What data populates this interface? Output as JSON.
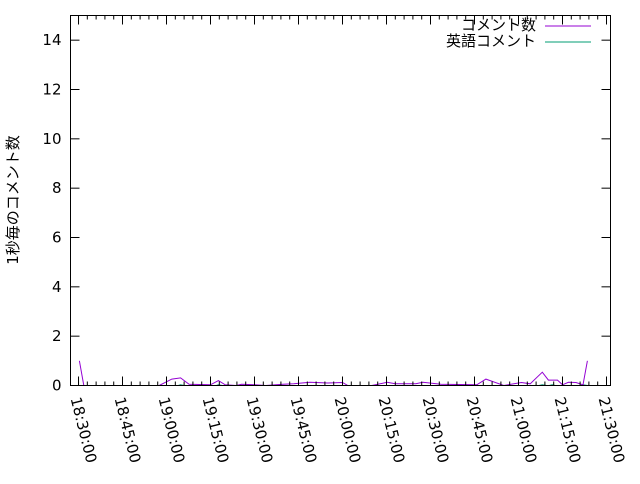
{
  "chart_data": {
    "type": "line",
    "title": "",
    "xlabel": "",
    "ylabel": "1秒毎のコメント数",
    "xlim": [
      "18:27:16",
      "21:31:22"
    ],
    "ylim": [
      0,
      15
    ],
    "x_ticks": [
      "18:30:00",
      "18:45:00",
      "19:00:00",
      "19:15:00",
      "19:30:00",
      "19:45:00",
      "20:00:00",
      "20:15:00",
      "20:30:00",
      "20:45:00",
      "21:00:00",
      "21:15:00",
      "21:30:00"
    ],
    "y_ticks": [
      0,
      2,
      4,
      6,
      8,
      10,
      12,
      14
    ],
    "grid": false,
    "legend_placement": "top-right",
    "series": [
      {
        "name": "コメント数",
        "color": "#9400d3",
        "points": [
          [
            "18:30:18",
            1.0
          ],
          [
            "18:31:48",
            0
          ],
          [
            "18:57:30",
            0
          ],
          [
            "19:01:48",
            0.26
          ],
          [
            "19:04:48",
            0.31
          ],
          [
            "19:07:42",
            0.05
          ],
          [
            "19:15:00",
            0.03
          ],
          [
            "19:17:42",
            0.2
          ],
          [
            "19:20:00",
            0.03
          ],
          [
            "19:23:48",
            0
          ],
          [
            "19:25:36",
            0.05
          ],
          [
            "19:30:00",
            0.03
          ],
          [
            "19:33:48",
            0
          ],
          [
            "19:39:42",
            0.05
          ],
          [
            "19:43:24",
            0.07
          ],
          [
            "19:48:54",
            0.13
          ],
          [
            "19:55:00",
            0.1
          ],
          [
            "20:00:00",
            0.12
          ],
          [
            "20:01:48",
            0
          ],
          [
            "20:10:00",
            0
          ],
          [
            "20:15:12",
            0.13
          ],
          [
            "20:18:00",
            0.07
          ],
          [
            "20:25:00",
            0.07
          ],
          [
            "20:27:24",
            0.13
          ],
          [
            "20:33:30",
            0.05
          ],
          [
            "20:45:48",
            0.03
          ],
          [
            "20:48:54",
            0.26
          ],
          [
            "20:55:00",
            0
          ],
          [
            "21:01:00",
            0.12
          ],
          [
            "21:04:00",
            0.07
          ],
          [
            "21:08:06",
            0.54
          ],
          [
            "21:10:12",
            0.22
          ],
          [
            "21:13:18",
            0.22
          ],
          [
            "21:15:00",
            0.03
          ],
          [
            "21:17:00",
            0.13
          ],
          [
            "21:19:36",
            0.12
          ],
          [
            "21:22:00",
            0.03
          ],
          [
            "21:23:30",
            1.0
          ]
        ]
      },
      {
        "name": "英語コメント",
        "color": "#009e73",
        "points": [
          [
            "18:30:18",
            0
          ],
          [
            "19:04:00",
            0
          ],
          [
            "19:04:48",
            0.03
          ],
          [
            "19:06:00",
            0
          ],
          [
            "19:17:00",
            0
          ],
          [
            "19:17:42",
            0.03
          ],
          [
            "19:19:00",
            0
          ],
          [
            "21:07:00",
            0
          ],
          [
            "21:08:06",
            0.03
          ],
          [
            "21:09:30",
            0
          ],
          [
            "21:10:30",
            0
          ],
          [
            "21:11:30",
            0.03
          ],
          [
            "21:12:30",
            0
          ],
          [
            "21:21:30",
            0
          ],
          [
            "21:22:00",
            0.03
          ],
          [
            "21:23:30",
            0
          ]
        ]
      }
    ]
  }
}
